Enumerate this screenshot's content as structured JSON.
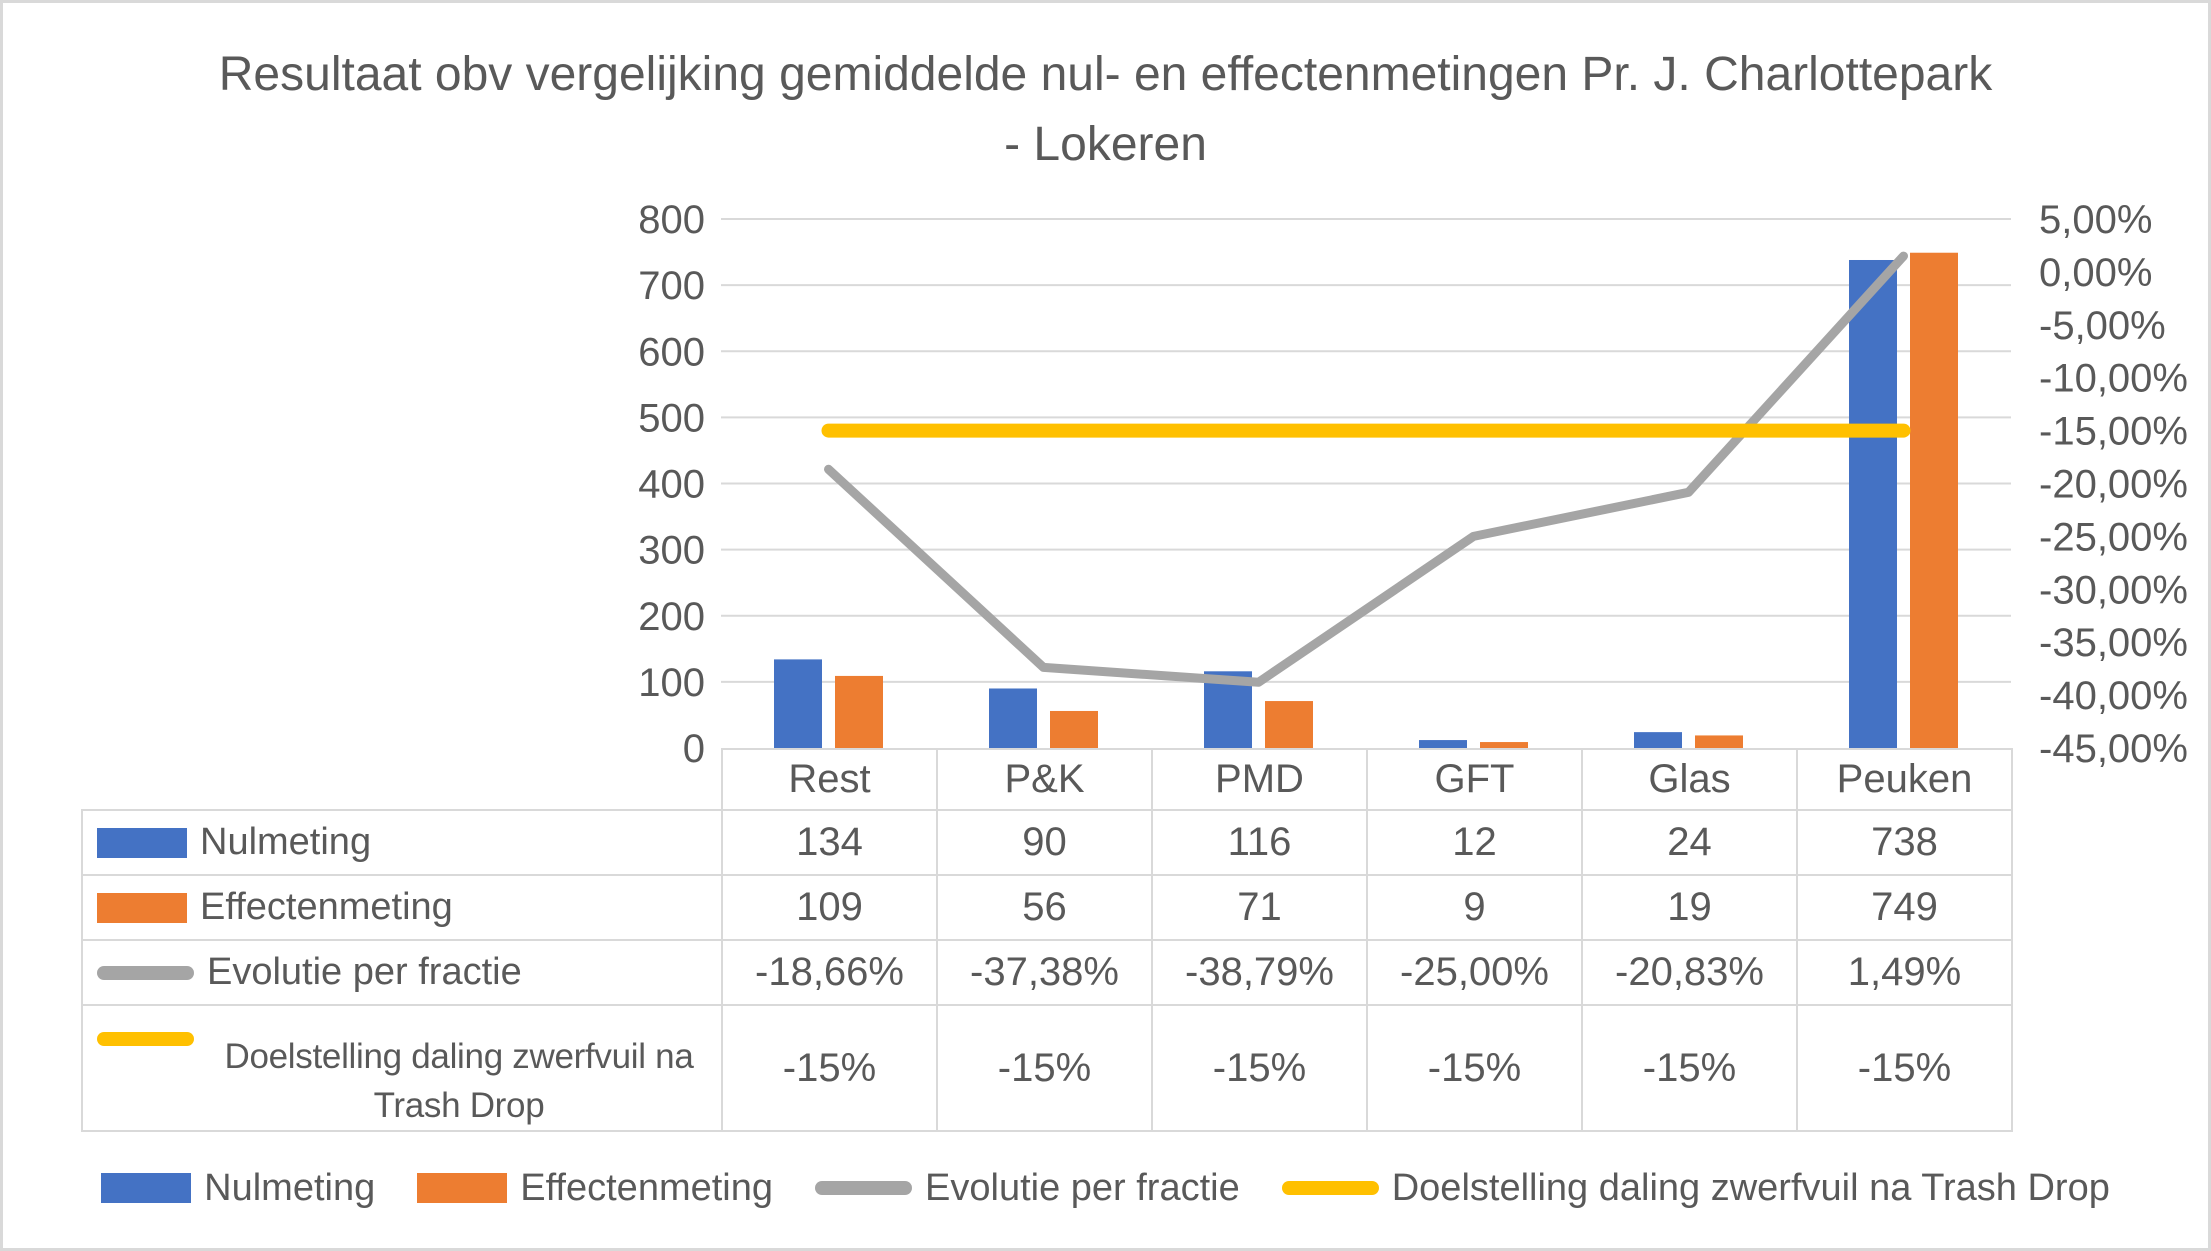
{
  "chart": {
    "title_lines": [
      "Resultaat obv vergelijking gemiddelde nul- en effectenmetingen Pr. J. Charlottepark",
      "- Lokeren"
    ]
  },
  "chart_data": {
    "type": "combo",
    "categories": [
      "Rest",
      "P&K",
      "PMD",
      "GFT",
      "Glas",
      "Peuken"
    ],
    "series": [
      {
        "name": "Nulmeting",
        "type": "bar",
        "axis": "left",
        "color": "#4472C4",
        "values": [
          134,
          90,
          116,
          12,
          24,
          738
        ]
      },
      {
        "name": "Effectenmeting",
        "type": "bar",
        "axis": "left",
        "color": "#ED7D31",
        "values": [
          109,
          56,
          71,
          9,
          19,
          749
        ]
      },
      {
        "name": "Evolutie per fractie",
        "type": "line",
        "axis": "right",
        "color": "#A5A5A5",
        "values": [
          -18.66,
          -37.38,
          -38.79,
          -25.0,
          -20.83,
          1.49
        ]
      },
      {
        "name": "Doelstelling daling zwerfvuil na Trash Drop",
        "type": "line",
        "axis": "right",
        "color": "#FFC000",
        "values": [
          -15,
          -15,
          -15,
          -15,
          -15,
          -15
        ]
      }
    ],
    "left_axis": {
      "min": 0,
      "max": 800,
      "step": 100,
      "tick_labels": [
        "800",
        "700",
        "600",
        "500",
        "400",
        "300",
        "200",
        "100",
        "0"
      ]
    },
    "right_axis": {
      "min": -45,
      "max": 5,
      "step": 5,
      "format": "percent-comma",
      "tick_labels": [
        "5,00%",
        "0,00%",
        "-5,00%",
        "-10,00%",
        "-15,00%",
        "-20,00%",
        "-25,00%",
        "-30,00%",
        "-35,00%",
        "-40,00%",
        "-45,00%"
      ]
    },
    "grid": true,
    "gridline_color": "#D9D9D9",
    "legend_position": "bottom",
    "title": "Resultaat obv vergelijking gemiddelde nul- en effectenmetingen Pr. J. Charlottepark - Lokeren"
  },
  "table": {
    "header": [
      "Rest",
      "P&K",
      "PMD",
      "GFT",
      "Glas",
      "Peuken"
    ],
    "rows": [
      {
        "label_lines": [
          "Nulmeting"
        ],
        "swatch": "bar",
        "color": "#4472C4",
        "values": [
          "134",
          "90",
          "116",
          "12",
          "24",
          "738"
        ]
      },
      {
        "label_lines": [
          "Effectenmeting"
        ],
        "swatch": "bar",
        "color": "#ED7D31",
        "values": [
          "109",
          "56",
          "71",
          "9",
          "19",
          "749"
        ]
      },
      {
        "label_lines": [
          "Evolutie per fractie"
        ],
        "swatch": "line",
        "color": "#A5A5A5",
        "values": [
          "-18,66%",
          "-37,38%",
          "-38,79%",
          "-25,00%",
          "-20,83%",
          "1,49%"
        ]
      },
      {
        "label_lines": [
          "Doelstelling daling zwerfvuil na",
          "Trash Drop"
        ],
        "swatch": "line",
        "color": "#FFC000",
        "values": [
          "-15%",
          "-15%",
          "-15%",
          "-15%",
          "-15%",
          "-15%"
        ]
      }
    ]
  },
  "legend": {
    "items": [
      {
        "label": "Nulmeting",
        "shape": "bar",
        "color": "#4472C4"
      },
      {
        "label": "Effectenmeting",
        "shape": "bar",
        "color": "#ED7D31"
      },
      {
        "label": "Evolutie per fractie",
        "shape": "line",
        "color": "#A5A5A5"
      },
      {
        "label": "Doelstelling daling zwerfvuil na Trash Drop",
        "shape": "line",
        "color": "#FFC000"
      }
    ]
  },
  "colors": {
    "nulmeting": "#4472C4",
    "effectenmeting": "#ED7D31",
    "evolutie": "#A5A5A5",
    "doelstelling": "#FFC000",
    "gridline": "#D9D9D9",
    "text": "#595959"
  }
}
